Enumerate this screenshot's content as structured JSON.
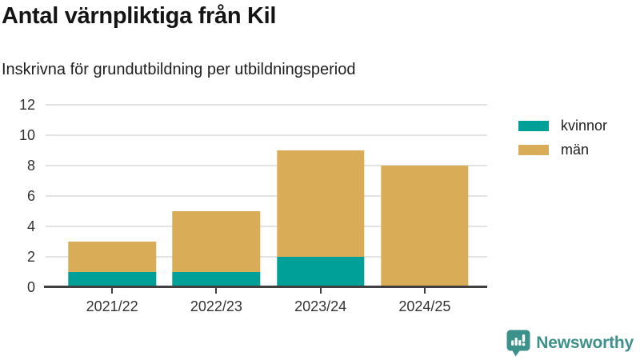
{
  "header": {
    "title": "Antal värnpliktiga från Kil",
    "subtitle": "Inskrivna för grundutbildning per utbildningsperiod"
  },
  "legend": {
    "items": [
      {
        "label": "kvinnor",
        "color": "#00a099"
      },
      {
        "label": "män",
        "color": "#d9ad57"
      }
    ]
  },
  "chart_data": {
    "type": "bar",
    "stacked": true,
    "title": "Antal värnpliktiga från Kil",
    "subtitle": "Inskrivna för grundutbildning per utbildningsperiod",
    "categories": [
      "2021/22",
      "2022/23",
      "2023/24",
      "2024/25"
    ],
    "series": [
      {
        "name": "kvinnor",
        "color": "#00a099",
        "values": [
          1,
          1,
          2,
          0
        ]
      },
      {
        "name": "män",
        "color": "#d9ad57",
        "values": [
          2,
          4,
          7,
          8
        ]
      }
    ],
    "stack_totals": [
      3,
      5,
      9,
      8
    ],
    "xlabel": "",
    "ylabel": "",
    "ylim": [
      0,
      12
    ],
    "yticks": [
      0,
      2,
      4,
      6,
      8,
      10,
      12
    ],
    "grid": true,
    "legend_position": "outside-upper-right"
  },
  "colors": {
    "axis": "#404040",
    "gridline": "#e3e3e3",
    "tick_label": "#333333",
    "brand": "#3d918b"
  },
  "footer": {
    "brand": "Newsworthy"
  }
}
